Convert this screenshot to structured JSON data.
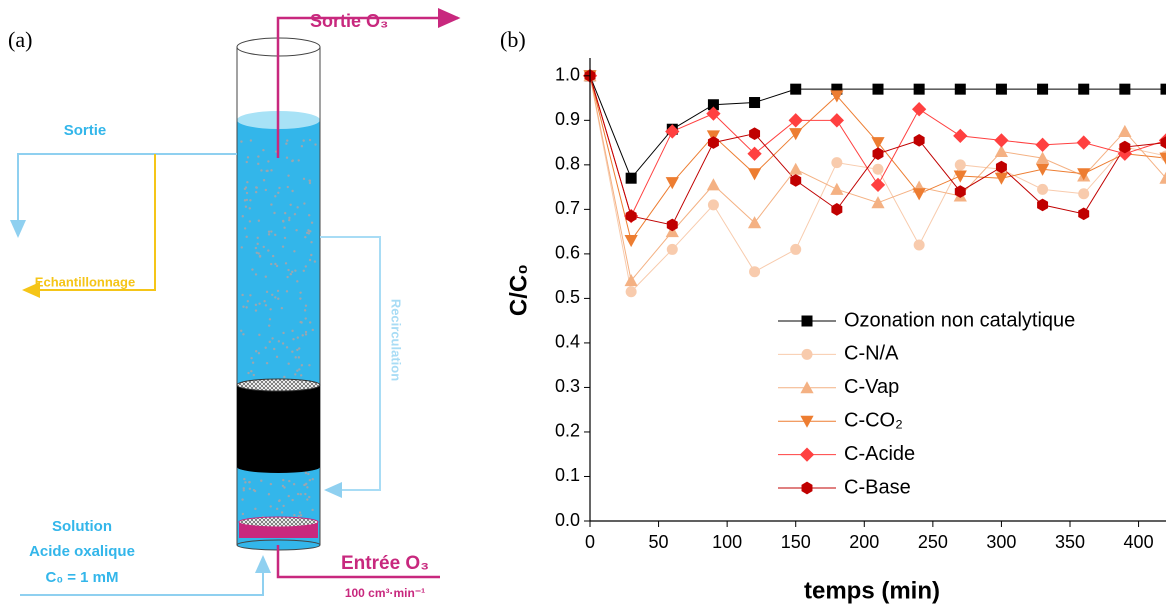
{
  "panel_a": {
    "label": "(a)",
    "outlet_o3": "Sortie O₃",
    "outlet": "Sortie",
    "sampling": "Echantillonnage",
    "recirculation": "Recirculation",
    "solution": [
      "Solution",
      "Acide oxalique",
      "C₀ = 1 mM"
    ],
    "inlet_o3": "Entrée O₃",
    "flow": "100 cm³·min⁻¹"
  },
  "chart_data": {
    "type": "line",
    "panel_label": "(b)",
    "x_label": "temps (min)",
    "y_label": "C/C₀",
    "x": [
      0,
      30,
      60,
      90,
      120,
      150,
      180,
      210,
      240,
      270,
      300,
      330,
      360,
      390,
      420
    ],
    "xlim": [
      0,
      420
    ],
    "xticks": [
      0,
      50,
      100,
      150,
      200,
      250,
      300,
      350,
      400
    ],
    "ylim": [
      0,
      1.04
    ],
    "yticks": [
      {
        "value": 0,
        "label": "0.0"
      },
      0.1,
      0.2,
      0.3,
      0.4,
      0.5,
      0.6,
      0.7,
      0.8,
      0.9,
      {
        "value": 1,
        "label": "1.0"
      }
    ],
    "legend": "lower right",
    "series": [
      {
        "name": "Ozonation non catalytique",
        "color": "#000000",
        "marker": "square",
        "values": [
          1.0,
          0.77,
          0.88,
          0.935,
          0.94,
          0.97,
          0.97,
          0.97,
          0.97,
          0.97,
          0.97,
          0.97,
          0.97,
          0.97,
          0.97
        ]
      },
      {
        "name": "C-N/A",
        "color": "#f8cbad",
        "marker": "circle",
        "values": [
          1.0,
          0.515,
          0.61,
          0.71,
          0.56,
          0.61,
          0.805,
          0.79,
          0.62,
          0.8,
          0.79,
          0.745,
          0.735,
          0.84,
          0.82
        ]
      },
      {
        "name": "C-Vap",
        "color": "#f4b183",
        "marker": "triangle-up",
        "values": [
          1.0,
          0.54,
          0.65,
          0.755,
          0.67,
          0.79,
          0.745,
          0.715,
          0.75,
          0.73,
          0.83,
          0.815,
          0.775,
          0.875,
          0.77
        ]
      },
      {
        "name": "C-CO₂",
        "color": "#ed7d31",
        "marker": "triangle-down",
        "values": [
          1.0,
          0.63,
          0.76,
          0.865,
          0.78,
          0.87,
          0.955,
          0.85,
          0.735,
          0.775,
          0.77,
          0.79,
          0.78,
          0.825,
          0.815
        ]
      },
      {
        "name": "C-Acide",
        "color": "#ff4040",
        "marker": "diamond",
        "values": [
          1.0,
          0.685,
          0.875,
          0.915,
          0.825,
          0.9,
          0.9,
          0.755,
          0.925,
          0.865,
          0.855,
          0.845,
          0.85,
          0.825,
          0.855
        ]
      },
      {
        "name": "C-Base",
        "color": "#c00000",
        "marker": "hexagon",
        "values": [
          1.0,
          0.685,
          0.665,
          0.85,
          0.87,
          0.765,
          0.7,
          0.825,
          0.855,
          0.74,
          0.795,
          0.71,
          0.69,
          0.84,
          0.85
        ]
      }
    ]
  }
}
